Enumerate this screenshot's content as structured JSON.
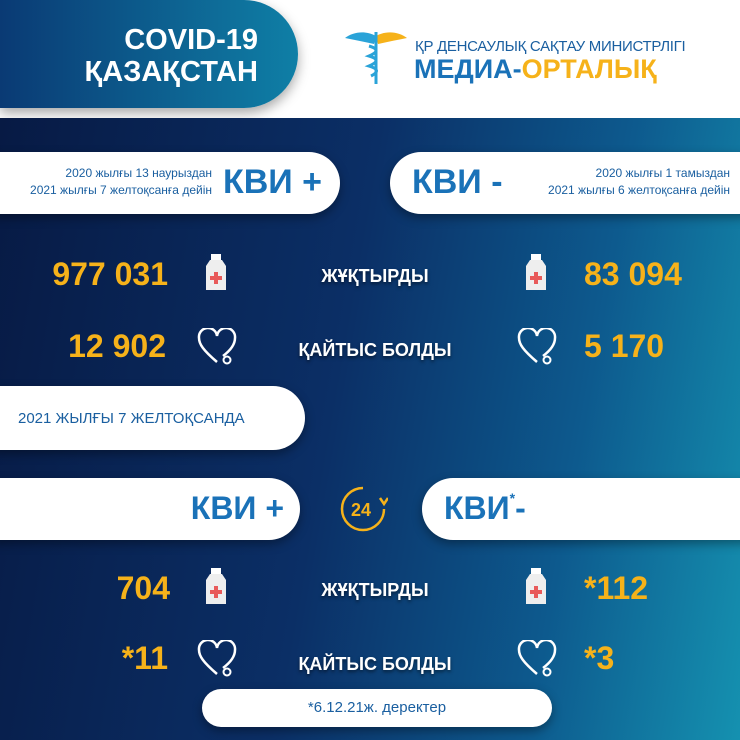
{
  "header": {
    "title_line1": "COVID-19",
    "title_line2": "ҚАЗАҚСТАН",
    "logo_line1": "ҚР ДЕНСАУЛЫҚ САҚТАУ МИНИСТРЛІГІ",
    "logo_line2a": "МЕДИА-",
    "logo_line2b": "ОРТАЛЫҚ"
  },
  "cumulative": {
    "left": {
      "date1": "2020 жылғы 13 наурыздан",
      "date2": "2021 жылғы 7 желтоқсанға дейін",
      "label": "КВИ +",
      "infected": "977 031",
      "deaths": "12 902"
    },
    "right": {
      "date1": "2020 жылғы 1 тамыздан",
      "date2": "2021 жылғы 6 желтоқсанға дейін",
      "label": "КВИ -",
      "infected": "83 094",
      "deaths": "5 170"
    },
    "infected_label": "ЖҰҚТЫРДЫ",
    "deaths_label": "ҚАЙТЫС БОЛДЫ"
  },
  "daily": {
    "date_label": "2021 ЖЫЛҒЫ 7 ЖЕЛТОҚСАНДА",
    "badge": "24",
    "left": {
      "label": "КВИ +",
      "infected": "704",
      "deaths": "*11"
    },
    "right": {
      "label": "КВИ",
      "label_suffix": "-",
      "asterisk": "*",
      "infected": "*112",
      "deaths": "*3"
    },
    "infected_label": "ЖҰҚТЫРДЫ",
    "deaths_label": "ҚАЙТЫС БОЛДЫ",
    "footnote": "*6.12.21ж. деректер"
  },
  "colors": {
    "accent_yellow": "#f6b21a",
    "brand_blue": "#1a72b8",
    "navy": "#071a44",
    "teal": "#1591b0"
  },
  "icons": [
    "caduceus-logo",
    "medicine-bottle-icon",
    "heart-stethoscope-icon",
    "24-hours-icon"
  ]
}
